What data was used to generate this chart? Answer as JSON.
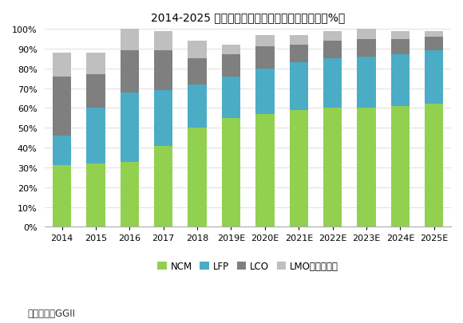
{
  "title": "2014-2025 中国各类型正极材料产量占比（单位：%）",
  "categories": [
    "2014",
    "2015",
    "2016",
    "2017",
    "2018",
    "2019E",
    "2020E",
    "2021E",
    "2022E",
    "2023E",
    "2024E",
    "2025E"
  ],
  "NCM": [
    31,
    32,
    33,
    41,
    50,
    55,
    57,
    59,
    60,
    60,
    61,
    62
  ],
  "LFP": [
    15,
    28,
    35,
    28,
    22,
    21,
    23,
    24,
    25,
    26,
    26,
    27
  ],
  "LCO": [
    30,
    17,
    21,
    20,
    13,
    11,
    11,
    9,
    9,
    9,
    8,
    7
  ],
  "LMO": [
    12,
    11,
    11,
    10,
    9,
    5,
    6,
    5,
    5,
    5,
    4,
    3
  ],
  "colors": {
    "NCM": "#92d050",
    "LFP": "#4bacc6",
    "LCO": "#7f7f7f",
    "LMO": "#bfbfbf"
  },
  "legend_labels": [
    "NCM",
    "LFP",
    "LCO",
    "LMO及其他合计"
  ],
  "ylim": [
    0,
    100
  ],
  "source": "数据来源：GGII",
  "background_color": "#ffffff",
  "title_fontsize": 11,
  "tick_fontsize": 8,
  "legend_fontsize": 8.5
}
